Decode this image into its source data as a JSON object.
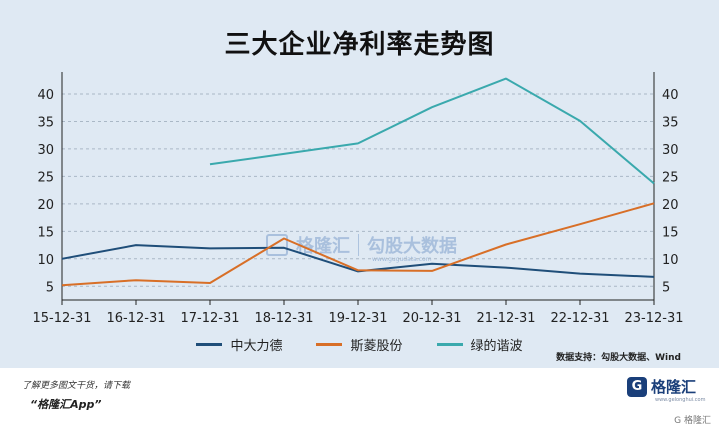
{
  "title": "三大企业净利率走势图",
  "chart_data": {
    "type": "line",
    "x": [
      "15-12-31",
      "16-12-31",
      "17-12-31",
      "18-12-31",
      "19-12-31",
      "20-12-31",
      "21-12-31",
      "22-12-31",
      "23-12-31"
    ],
    "yticks": [
      5,
      10,
      15,
      20,
      25,
      30,
      35,
      40
    ],
    "ylim": [
      2.5,
      44
    ],
    "grid": true,
    "legend_position": "bottom",
    "series": [
      {
        "name": "中大力德",
        "color": "#1f4e79",
        "values": [
          10.0,
          12.5,
          11.9,
          12.0,
          7.7,
          9.1,
          8.4,
          7.3,
          6.7
        ]
      },
      {
        "name": "斯菱股份",
        "color": "#d86f27",
        "values": [
          5.2,
          6.1,
          5.6,
          13.7,
          7.9,
          7.8,
          12.6,
          16.3,
          20.1
        ]
      },
      {
        "name": "绿的谐波",
        "color": "#3aa9ad",
        "values": [
          null,
          null,
          27.2,
          29.1,
          31.0,
          37.6,
          42.8,
          35.1,
          23.7
        ]
      }
    ]
  },
  "source": "数据支持：勾股大数据、Wind",
  "watermark": {
    "brand": "格隆汇",
    "service": "勾股大数据",
    "url": "www.gugudata.com"
  },
  "footer": {
    "promo_line1": "了解更多图文干货，请下载",
    "promo_line2": "“格隆汇App”",
    "logo_text": "格隆汇",
    "logo_url": "www.gelonghui.com",
    "credit": "G 格隆汇"
  }
}
